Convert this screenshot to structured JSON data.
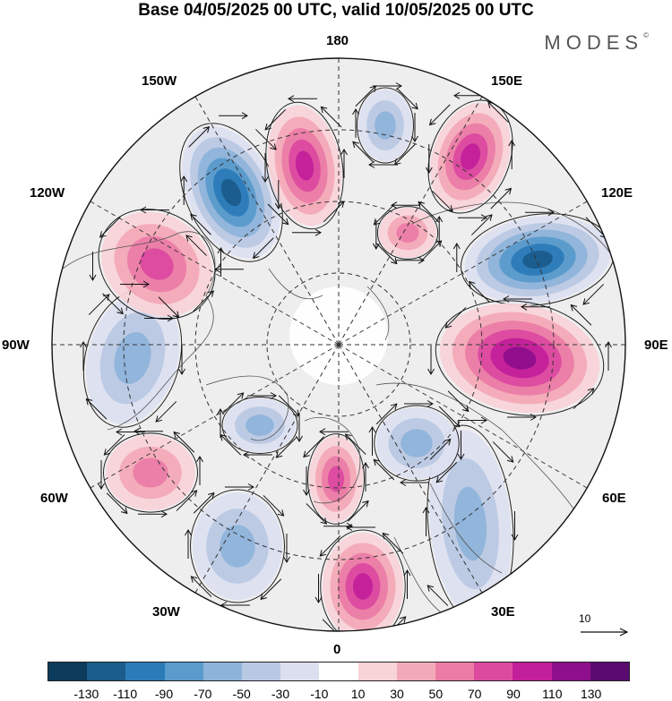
{
  "title": "Base 04/05/2025 00 UTC, valid 10/05/2025 00 UTC",
  "brand": "MODES",
  "brand_mark": "©",
  "longitude_labels": {
    "top": "180",
    "bottom": "0",
    "left": "90W",
    "right": "90E",
    "nw1": "150W",
    "nw2": "120W",
    "ne1": "150E",
    "ne2": "120E",
    "sw1": "60W",
    "sw2": "30W",
    "se1": "60E",
    "se2": "30E"
  },
  "reference_vector": {
    "label": "10"
  },
  "colorbar": {
    "colors": [
      "#0d3b5c",
      "#1a5c8c",
      "#2b7bb8",
      "#5a9bcc",
      "#8eb3da",
      "#b9c8e3",
      "#dcdfef",
      "#ffffff",
      "#f8d3d8",
      "#f3aab8",
      "#eb7ca6",
      "#dc4aa0",
      "#c21f9a",
      "#8e0f8c",
      "#5a0b70"
    ],
    "tick_labels": [
      "-130",
      "-110",
      "-90",
      "-70",
      "-50",
      "-30",
      "-10",
      "10",
      "30",
      "50",
      "70",
      "90",
      "110",
      "130"
    ]
  },
  "anomaly_centers": [
    {
      "sign": "neg",
      "strength": 5
    },
    {
      "sign": "pos",
      "strength": 4
    },
    {
      "sign": "neg",
      "strength": 2
    },
    {
      "sign": "pos",
      "strength": 4
    },
    {
      "sign": "neg",
      "strength": 5
    },
    {
      "sign": "pos",
      "strength": 5
    },
    {
      "sign": "neg",
      "strength": 2
    },
    {
      "sign": "pos",
      "strength": 3
    },
    {
      "sign": "neg",
      "strength": 2
    },
    {
      "sign": "pos",
      "strength": 2
    },
    {
      "sign": "neg",
      "strength": 2
    },
    {
      "sign": "pos",
      "strength": 3
    },
    {
      "sign": "pos",
      "strength": 4
    },
    {
      "sign": "neg",
      "strength": 2
    },
    {
      "sign": "neg",
      "strength": 2
    },
    {
      "sign": "pos",
      "strength": 2
    }
  ]
}
